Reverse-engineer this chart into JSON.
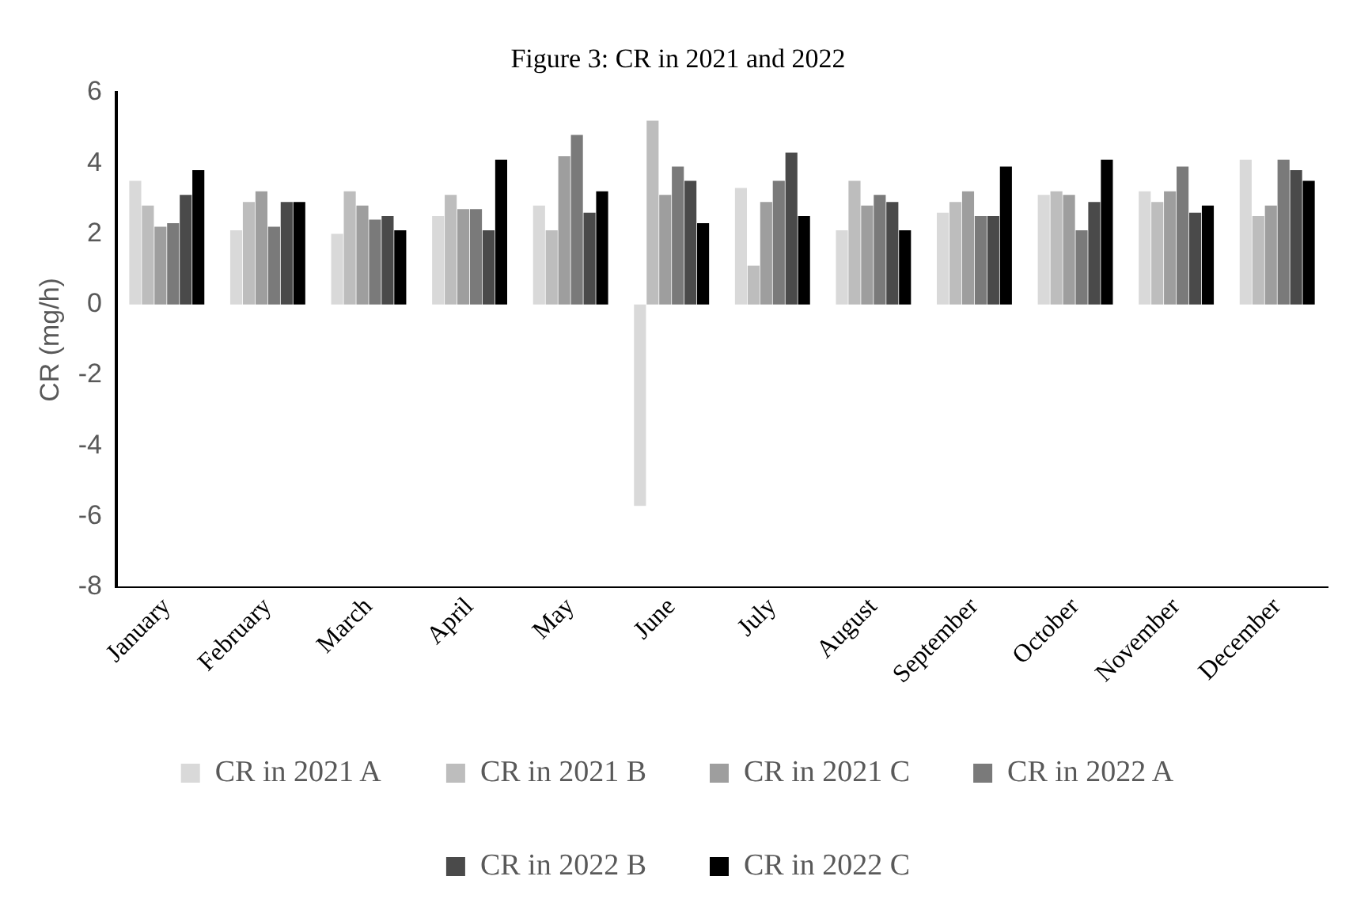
{
  "chart_data": {
    "type": "bar",
    "title": "Figure 3: CR in 2021 and 2022",
    "ylabel": "CR (mg/h)",
    "categories": [
      "January",
      "February",
      "March",
      "April",
      "May",
      "June",
      "July",
      "August",
      "September",
      "October",
      "November",
      "December"
    ],
    "series": [
      {
        "name": "CR in 2021 A",
        "color": "#d9d9d9",
        "values": [
          3.5,
          2.1,
          2.0,
          2.5,
          2.8,
          -5.7,
          3.3,
          2.1,
          2.6,
          3.1,
          3.2,
          4.1
        ]
      },
      {
        "name": "CR in 2021 B",
        "color": "#bdbdbd",
        "values": [
          2.8,
          2.9,
          3.2,
          3.1,
          2.1,
          5.2,
          1.1,
          3.5,
          2.9,
          3.2,
          2.9,
          2.5
        ]
      },
      {
        "name": "CR in 2021 C",
        "color": "#9e9e9e",
        "values": [
          2.2,
          3.2,
          2.8,
          2.7,
          4.2,
          3.1,
          2.9,
          2.8,
          3.2,
          3.1,
          3.2,
          2.8
        ]
      },
      {
        "name": "CR in 2022 A",
        "color": "#7a7a7a",
        "values": [
          2.3,
          2.2,
          2.4,
          2.7,
          4.8,
          3.9,
          3.5,
          3.1,
          2.5,
          2.1,
          3.9,
          4.1
        ]
      },
      {
        "name": "CR in 2022 B",
        "color": "#4a4a4a",
        "values": [
          3.1,
          2.9,
          2.5,
          2.1,
          2.6,
          3.5,
          4.3,
          2.9,
          2.5,
          2.9,
          2.6,
          3.8
        ]
      },
      {
        "name": "CR in 2022 C",
        "color": "#000000",
        "values": [
          3.8,
          2.9,
          2.1,
          4.1,
          3.2,
          2.3,
          2.5,
          2.1,
          3.9,
          4.1,
          2.8,
          3.5
        ]
      }
    ],
    "ylim": [
      -8,
      6
    ],
    "yticks": [
      -8,
      -6,
      -4,
      -2,
      0,
      2,
      4,
      6
    ],
    "grid": false,
    "legend": "bottom"
  }
}
